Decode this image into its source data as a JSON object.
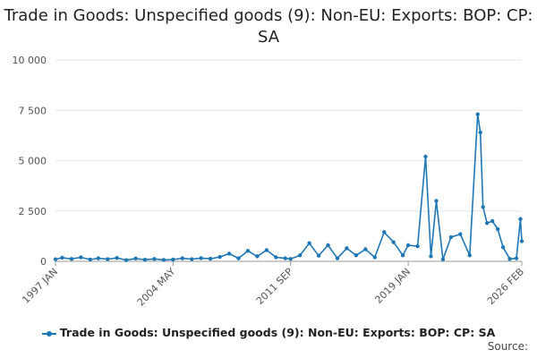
{
  "chart_data": {
    "type": "line",
    "title": "Trade in Goods: Unspecified goods (9): Non-EU: Exports: BOP: CP: SA",
    "xlabel": "",
    "ylabel": "",
    "ylim": [
      0,
      10000
    ],
    "y_ticks": [
      0,
      2500,
      5000,
      7500,
      10000
    ],
    "y_tick_labels": [
      "0",
      "2 500",
      "5 000",
      "7 500",
      "10 000"
    ],
    "x_range": [
      "1997 JAN",
      "2026 FEB"
    ],
    "x_tick_labels": [
      "1997 JAN",
      "2004 MAY",
      "2011 SEP",
      "2019 JAN",
      "2026 FEB"
    ],
    "grid": true,
    "legend_position": "bottom",
    "color": "#1f77b4",
    "series": [
      {
        "name": "Trade in Goods: Unspecified goods (9): Non-EU: Exports: BOP: CP: SA",
        "points": [
          [
            "1997 JAN",
            100
          ],
          [
            "1997 JUN",
            180
          ],
          [
            "1998 JAN",
            120
          ],
          [
            "1998 AUG",
            200
          ],
          [
            "1999 MAR",
            90
          ],
          [
            "1999 SEP",
            150
          ],
          [
            "2000 APR",
            110
          ],
          [
            "2000 NOV",
            170
          ],
          [
            "2001 JUN",
            60
          ],
          [
            "2002 JAN",
            140
          ],
          [
            "2002 AUG",
            80
          ],
          [
            "2003 MAR",
            120
          ],
          [
            "2003 OCT",
            70
          ],
          [
            "2004 MAY",
            90
          ],
          [
            "2004 DEC",
            150
          ],
          [
            "2005 JUL",
            110
          ],
          [
            "2006 FEB",
            160
          ],
          [
            "2006 SEP",
            130
          ],
          [
            "2007 APR",
            220
          ],
          [
            "2007 NOV",
            380
          ],
          [
            "2008 JUN",
            150
          ],
          [
            "2009 JAN",
            520
          ],
          [
            "2009 AUG",
            250
          ],
          [
            "2010 MAR",
            560
          ],
          [
            "2010 OCT",
            200
          ],
          [
            "2011 MAY",
            150
          ],
          [
            "2011 SEP",
            120
          ],
          [
            "2012 APR",
            300
          ],
          [
            "2012 NOV",
            900
          ],
          [
            "2013 JUN",
            280
          ],
          [
            "2014 JAN",
            800
          ],
          [
            "2014 AUG",
            150
          ],
          [
            "2015 MAR",
            650
          ],
          [
            "2015 OCT",
            300
          ],
          [
            "2016 MAY",
            600
          ],
          [
            "2016 DEC",
            200
          ],
          [
            "2017 JUL",
            1450
          ],
          [
            "2018 FEB",
            950
          ],
          [
            "2018 SEP",
            300
          ],
          [
            "2019 JAN",
            800
          ],
          [
            "2019 AUG",
            750
          ],
          [
            "2020 FEB",
            5200
          ],
          [
            "2020 JUN",
            250
          ],
          [
            "2020 OCT",
            3000
          ],
          [
            "2021 MAR",
            100
          ],
          [
            "2021 SEP",
            1200
          ],
          [
            "2022 APR",
            1350
          ],
          [
            "2022 NOV",
            300
          ],
          [
            "2023 MAY",
            7300
          ],
          [
            "2023 JUL",
            6400
          ],
          [
            "2023 SEP",
            2700
          ],
          [
            "2023 DEC",
            1900
          ],
          [
            "2024 APR",
            2000
          ],
          [
            "2024 AUG",
            1600
          ],
          [
            "2024 DEC",
            700
          ],
          [
            "2025 MAY",
            120
          ],
          [
            "2025 OCT",
            150
          ],
          [
            "2026 JAN",
            2100
          ],
          [
            "2026 FEB",
            1000
          ]
        ]
      }
    ],
    "source": "Source:"
  }
}
